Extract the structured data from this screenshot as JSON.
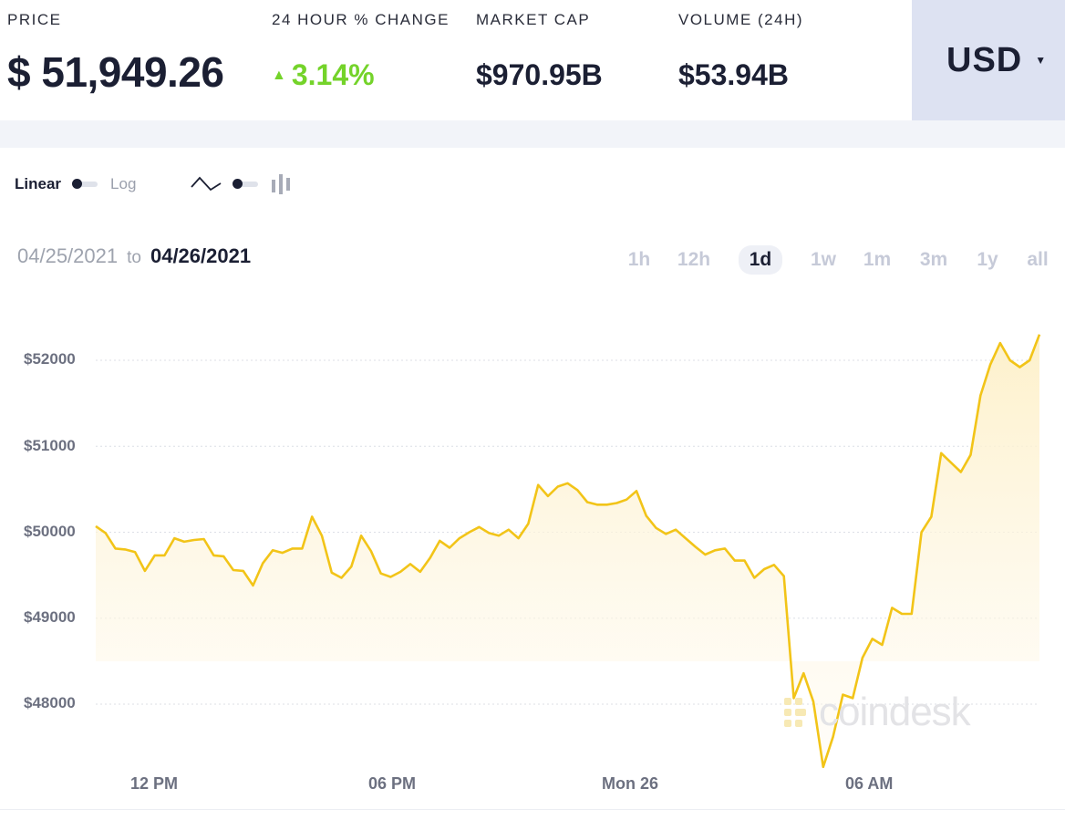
{
  "header": {
    "price_label": "PRICE",
    "price_value": "$ 51,949.26",
    "change_label": "24 HOUR % CHANGE",
    "change_value": "3.14%",
    "change_direction": "up",
    "marketcap_label": "MARKET CAP",
    "marketcap_value": "$970.95B",
    "volume_label": "VOLUME (24H)",
    "volume_value": "$53.94B",
    "currency": "USD"
  },
  "controls": {
    "scale_linear": "Linear",
    "scale_log": "Log",
    "chart_type_line_icon": "line-chart-icon",
    "chart_type_candle_icon": "candlestick-icon"
  },
  "date_range": {
    "from": "04/25/2021",
    "to_word": "to",
    "to": "04/26/2021"
  },
  "ranges": [
    {
      "label": "1h",
      "active": false
    },
    {
      "label": "12h",
      "active": false
    },
    {
      "label": "1d",
      "active": true
    },
    {
      "label": "1w",
      "active": false
    },
    {
      "label": "1m",
      "active": false
    },
    {
      "label": "3m",
      "active": false
    },
    {
      "label": "1y",
      "active": false
    },
    {
      "label": "all",
      "active": false
    }
  ],
  "watermark": "coindesk",
  "colors": {
    "line": "#f2c418",
    "fill_top": "#fdf0c8",
    "up": "#74d32a",
    "currency_bg": "#dde2f2"
  },
  "chart_data": {
    "type": "area",
    "title": "",
    "xlabel": "",
    "ylabel": "",
    "ylim": [
      47300,
      52400
    ],
    "y_ticks": [
      52000,
      51000,
      50000,
      49000,
      48000
    ],
    "y_tick_labels": [
      "$52000",
      "$51000",
      "$50000",
      "$49000",
      "$48000"
    ],
    "x_ticks": [
      {
        "label": "12 PM",
        "x": 6.5
      },
      {
        "label": "06 PM",
        "x": 31.5
      },
      {
        "label": "Mon 26",
        "x": 56.5
      },
      {
        "label": "06 AM",
        "x": 81.5
      }
    ],
    "x_range": [
      0,
      99
    ],
    "grid": "horizontal dotted",
    "series": [
      {
        "values": [
          50070,
          49990,
          49810,
          49800,
          49770,
          49550,
          49730,
          49730,
          49930,
          49890,
          49910,
          49920,
          49730,
          49720,
          49560,
          49550,
          49380,
          49640,
          49790,
          49760,
          49810,
          49810,
          50180,
          49960,
          49530,
          49470,
          49600,
          49960,
          49780,
          49520,
          49480,
          49540,
          49630,
          49540,
          49700,
          49900,
          49820,
          49930,
          50000,
          50060,
          49990,
          49960,
          50030,
          49930,
          50100,
          50550,
          50420,
          50530,
          50570,
          50490,
          50350,
          50320,
          50320,
          50340,
          50380,
          50480,
          50190,
          50050,
          49980,
          50030,
          49930,
          49830,
          49740,
          49790,
          49810,
          49670,
          49670,
          49470,
          49570,
          49620,
          49490,
          48070,
          48360,
          48030,
          47270,
          47620,
          48110,
          48070,
          48540,
          48760,
          48690,
          49120,
          49050,
          49050,
          50000,
          50180,
          50920,
          50810,
          50700,
          50900,
          51590,
          51950,
          52200,
          52000,
          51920,
          52000,
          52300
        ]
      }
    ]
  }
}
